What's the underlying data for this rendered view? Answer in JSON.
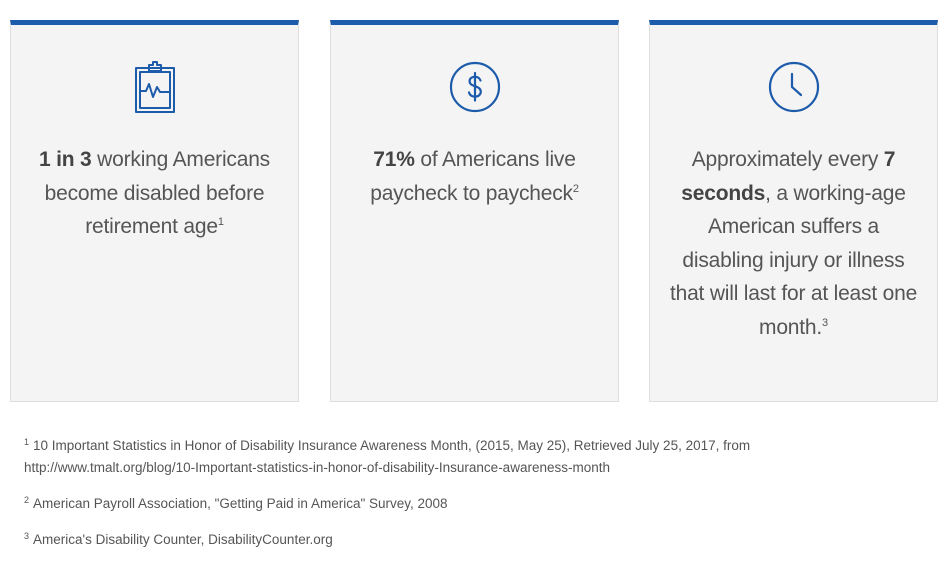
{
  "cards": [
    {
      "icon": "clipboard-heartbeat-icon",
      "bold_lead": "1 in 3",
      "text": " working Americans become disabled before retirement age",
      "footnote": "1"
    },
    {
      "icon": "dollar-circle-icon",
      "bold_lead": "71%",
      "text": " of Americans live paycheck to paycheck",
      "footnote": "2"
    },
    {
      "icon": "clock-icon",
      "text_before": "Approximately every ",
      "bold_mid": "7 seconds",
      "text_after": ", a working-age American suffers a disabling injury or illness that will last for at least one month.",
      "footnote": "3"
    }
  ],
  "footnotes": [
    {
      "marker": "1",
      "line1": "10 Important Statistics in Honor of Disability Insurance Awareness Month, (2015, May 25), Retrieved July 25, 2017, from",
      "line2": "http://www.tmalt.org/blog/10-Important-statistics-in-honor-of-disability-Insurance-awareness-month"
    },
    {
      "marker": "2",
      "text": "American Payroll Association, \"Getting Paid in America\" Survey, 2008"
    },
    {
      "marker": "3",
      "text": "America's Disability Counter, DisabilityCounter.org"
    }
  ],
  "colors": {
    "accent": "#1d5bab",
    "card_bg": "#f4f4f4",
    "text": "#555555"
  }
}
